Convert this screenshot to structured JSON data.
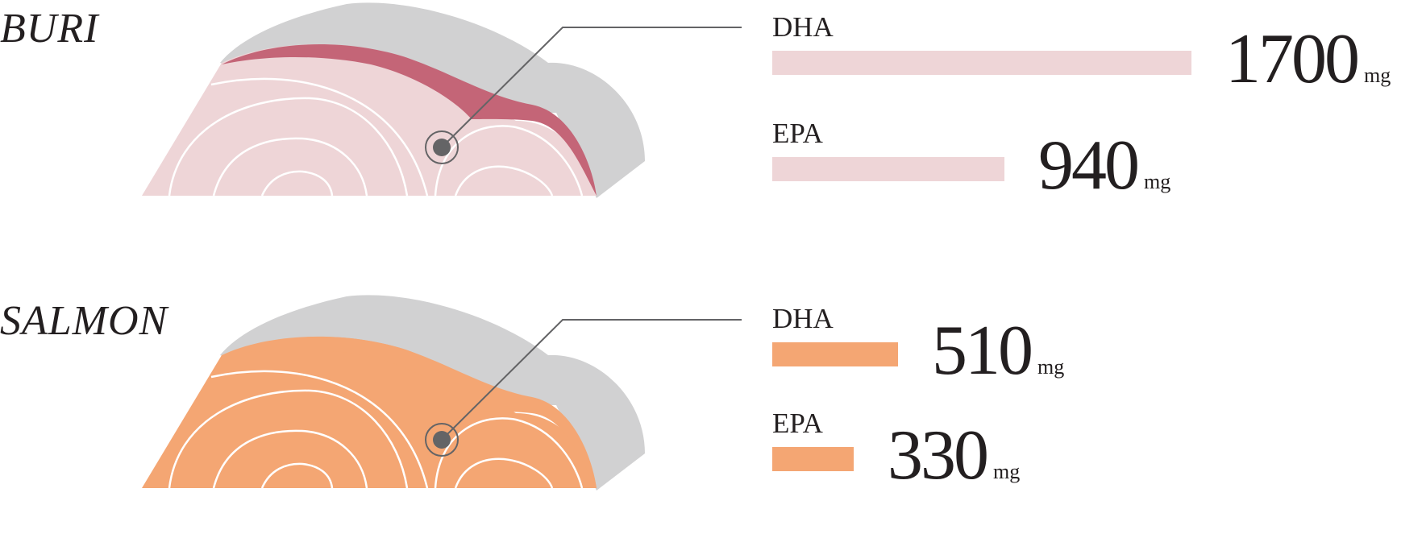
{
  "chart_data": {
    "type": "bar",
    "categories": [
      "DHA",
      "EPA"
    ],
    "unit": "mg",
    "fish": [
      {
        "name": "BURI",
        "color": "#eed5d7",
        "accent_color": "#c46577",
        "series": [
          {
            "label": "DHA",
            "value": 1700
          },
          {
            "label": "EPA",
            "value": 940
          }
        ]
      },
      {
        "name": "SALMON",
        "color": "#f4a673",
        "accent_color": "#f4a673",
        "series": [
          {
            "label": "DHA",
            "value": 510
          },
          {
            "label": "EPA",
            "value": 330
          }
        ]
      }
    ]
  },
  "colors": {
    "skin": "#d1d1d2",
    "ring_lines": "#ffffff",
    "marker": "#646466",
    "leader_line": "#646466",
    "text": "#231f20"
  }
}
